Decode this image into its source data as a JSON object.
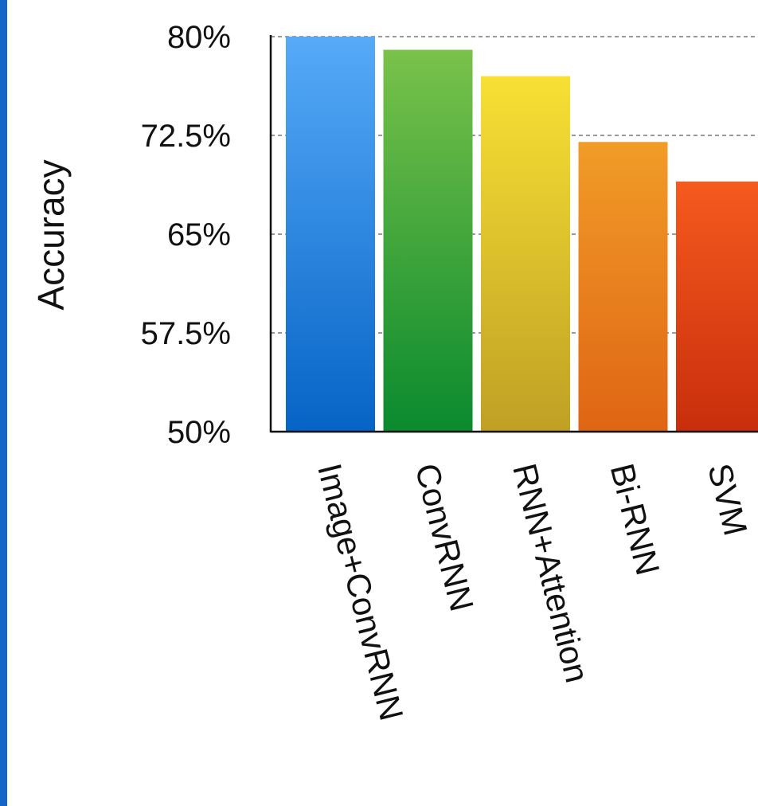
{
  "accent_color": "#1565c8",
  "chart_data": {
    "type": "bar",
    "title": "",
    "xlabel": "",
    "ylabel": "Accuracy",
    "ylim": [
      50,
      80
    ],
    "y_ticks": [
      50,
      57.5,
      65,
      72.5,
      80
    ],
    "y_tick_labels": [
      "50%",
      "57.5%",
      "65%",
      "72.5%",
      "80%"
    ],
    "grid": "horizontal dashed",
    "categories": [
      "Image+ConvRNN",
      "ConvRNN",
      "RNN+Attention",
      "Bi-RNN",
      "SVM"
    ],
    "values": [
      80,
      79,
      77,
      72,
      69
    ],
    "colors": [
      [
        "#56aaf8",
        "#0664c6"
      ],
      [
        "#79c24a",
        "#0a8a2e"
      ],
      [
        "#f8e034",
        "#c0a024"
      ],
      [
        "#f19c28",
        "#df6514"
      ],
      [
        "#f55a1e",
        "#c82e0c"
      ]
    ]
  }
}
